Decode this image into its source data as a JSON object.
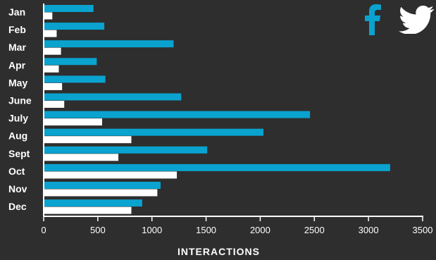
{
  "chart_data": {
    "type": "bar",
    "orientation": "horizontal",
    "categories": [
      "Jan",
      "Feb",
      "Mar",
      "Apr",
      "May",
      "June",
      "July",
      "Aug",
      "Sept",
      "Oct",
      "Nov",
      "Dec"
    ],
    "series": [
      {
        "name": "facebook",
        "color": "#0aa3cf",
        "values": [
          460,
          560,
          1200,
          490,
          570,
          1270,
          2460,
          2030,
          1510,
          3200,
          1080,
          910
        ]
      },
      {
        "name": "twitter",
        "color": "#ffffff",
        "values": [
          80,
          120,
          160,
          140,
          170,
          190,
          540,
          810,
          690,
          1230,
          1050,
          810
        ]
      }
    ],
    "xlabel": "INTERACTIONS",
    "xlim": [
      0,
      3500
    ],
    "xticks": [
      "0",
      "500",
      "1000",
      "1500",
      "2000",
      "2500",
      "3000",
      "3500"
    ],
    "grid": false,
    "legend": "top-right",
    "legend_icons": [
      "facebook-icon",
      "twitter-icon"
    ]
  },
  "colors": {
    "background": "#2e2e2e",
    "facebook": "#0aa3cf",
    "twitter": "#ffffff",
    "axis": "#ffffff"
  }
}
